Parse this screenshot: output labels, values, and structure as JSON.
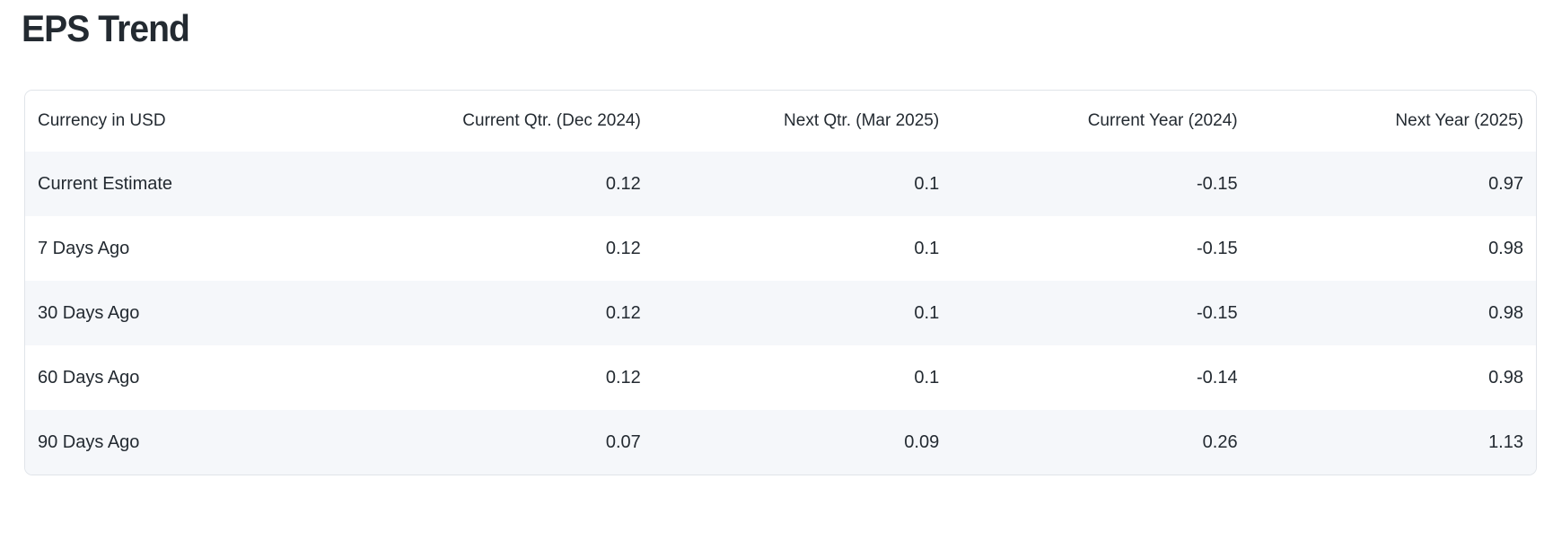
{
  "page": {
    "title": "EPS Trend"
  },
  "table": {
    "columns": [
      "Currency in USD",
      "Current Qtr. (Dec 2024)",
      "Next Qtr. (Mar 2025)",
      "Current Year (2024)",
      "Next Year (2025)"
    ],
    "rows": [
      {
        "label": "Current Estimate",
        "values": [
          "0.12",
          "0.1",
          "-0.15",
          "0.97"
        ]
      },
      {
        "label": "7 Days Ago",
        "values": [
          "0.12",
          "0.1",
          "-0.15",
          "0.98"
        ]
      },
      {
        "label": "30 Days Ago",
        "values": [
          "0.12",
          "0.1",
          "-0.15",
          "0.98"
        ]
      },
      {
        "label": "60 Days Ago",
        "values": [
          "0.12",
          "0.1",
          "-0.14",
          "0.98"
        ]
      },
      {
        "label": "90 Days Ago",
        "values": [
          "0.07",
          "0.09",
          "0.26",
          "1.13"
        ]
      }
    ]
  },
  "colors": {
    "text": "#232a31",
    "row_stripe": "#f5f7fa",
    "card_border": "#e0e4e9",
    "background": "#ffffff"
  }
}
